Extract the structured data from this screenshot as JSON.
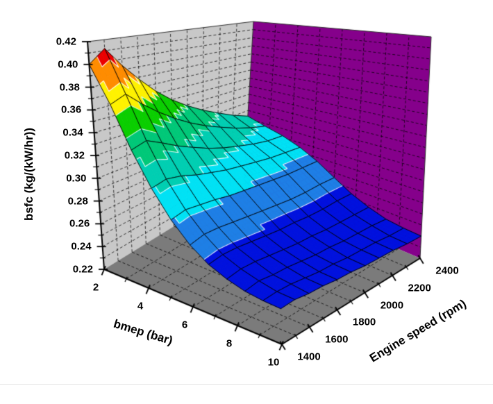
{
  "chart_data": {
    "type": "surface3d",
    "title": "",
    "x": {
      "label": "Engine speed (rpm)",
      "range": [
        1400,
        2400
      ],
      "tick_values": [
        1400,
        1600,
        1800,
        2000,
        2200,
        2400
      ],
      "tick_labels": [
        "1400",
        "1600",
        "1800",
        "2000",
        "2200",
        "2400"
      ],
      "minor_step": 100
    },
    "y": {
      "label": "bmep (bar)",
      "range": [
        2,
        10
      ],
      "tick_values": [
        2,
        4,
        6,
        8,
        10
      ],
      "tick_labels": [
        "2",
        "4",
        "6",
        "8",
        "10"
      ],
      "minor_step": 1
    },
    "z": {
      "label": "bsfc (kg/(kW/hr))",
      "range": [
        0.22,
        0.42
      ],
      "tick_values": [
        0.22,
        0.24,
        0.26,
        0.28,
        0.3,
        0.32,
        0.34,
        0.36,
        0.38,
        0.4,
        0.42
      ],
      "tick_labels": [
        "0.22",
        "0.24",
        "0.26",
        "0.28",
        "0.30",
        "0.32",
        "0.34",
        "0.36",
        "0.38",
        "0.40",
        "0.42"
      ],
      "minor_step": 0.01
    },
    "rpm_values": [
      1400,
      1500,
      1600,
      1700,
      1800,
      1900,
      2000,
      2100,
      2200,
      2300,
      2400
    ],
    "bmep_values": [
      2.0,
      2.8,
      3.6,
      4.4,
      5.2,
      6.0,
      6.8,
      7.6,
      8.4,
      9.2,
      10.0
    ],
    "bsfc_grid": [
      [
        0.4,
        0.412,
        0.394,
        0.378,
        0.363,
        0.35,
        0.339,
        0.329,
        0.32,
        0.311,
        0.303
      ],
      [
        0.366,
        0.372,
        0.36,
        0.349,
        0.339,
        0.33,
        0.322,
        0.315,
        0.308,
        0.302,
        0.297
      ],
      [
        0.33,
        0.334,
        0.328,
        0.321,
        0.315,
        0.309,
        0.304,
        0.3,
        0.296,
        0.293,
        0.292
      ],
      [
        0.302,
        0.305,
        0.303,
        0.299,
        0.296,
        0.293,
        0.291,
        0.289,
        0.287,
        0.286,
        0.285
      ],
      [
        0.281,
        0.284,
        0.283,
        0.282,
        0.28,
        0.279,
        0.278,
        0.277,
        0.276,
        0.276,
        0.276
      ],
      [
        0.266,
        0.269,
        0.269,
        0.268,
        0.267,
        0.266,
        0.265,
        0.264,
        0.264,
        0.265,
        0.265
      ],
      [
        0.256,
        0.258,
        0.258,
        0.257,
        0.256,
        0.255,
        0.255,
        0.254,
        0.254,
        0.255,
        0.255
      ],
      [
        0.25,
        0.252,
        0.252,
        0.251,
        0.25,
        0.249,
        0.249,
        0.248,
        0.248,
        0.248,
        0.248
      ],
      [
        0.246,
        0.248,
        0.247,
        0.247,
        0.246,
        0.245,
        0.245,
        0.244,
        0.244,
        0.244,
        0.243
      ],
      [
        0.244,
        0.245,
        0.245,
        0.244,
        0.243,
        0.243,
        0.242,
        0.242,
        0.242,
        0.241,
        0.241
      ],
      [
        0.243,
        0.244,
        0.243,
        0.243,
        0.242,
        0.242,
        0.241,
        0.241,
        0.241,
        0.24,
        0.24
      ]
    ],
    "bands": [
      {
        "min": 0.22,
        "max": 0.24,
        "color": "#0000B4"
      },
      {
        "min": 0.24,
        "max": 0.26,
        "color": "#0011DF"
      },
      {
        "min": 0.26,
        "max": 0.28,
        "color": "#1E7FE6"
      },
      {
        "min": 0.28,
        "max": 0.3,
        "color": "#00E2F5"
      },
      {
        "min": 0.3,
        "max": 0.32,
        "color": "#00CFB2"
      },
      {
        "min": 0.32,
        "max": 0.34,
        "color": "#00C878"
      },
      {
        "min": 0.34,
        "max": 0.36,
        "color": "#0ACE00"
      },
      {
        "min": 0.36,
        "max": 0.38,
        "color": "#FFF200"
      },
      {
        "min": 0.38,
        "max": 0.4,
        "color": "#FF8C00"
      },
      {
        "min": 0.4,
        "max": 0.42,
        "color": "#EC0000"
      }
    ],
    "colors": {
      "background": "#FFFFFF",
      "wall_left": "#C8C8C8",
      "wall_right": "#85008B",
      "floor": "#7B7B7B",
      "mesh": "#000000",
      "contour_line": "#FFFFFF",
      "axis": "#000000",
      "divider": "#E4E4E4"
    }
  }
}
